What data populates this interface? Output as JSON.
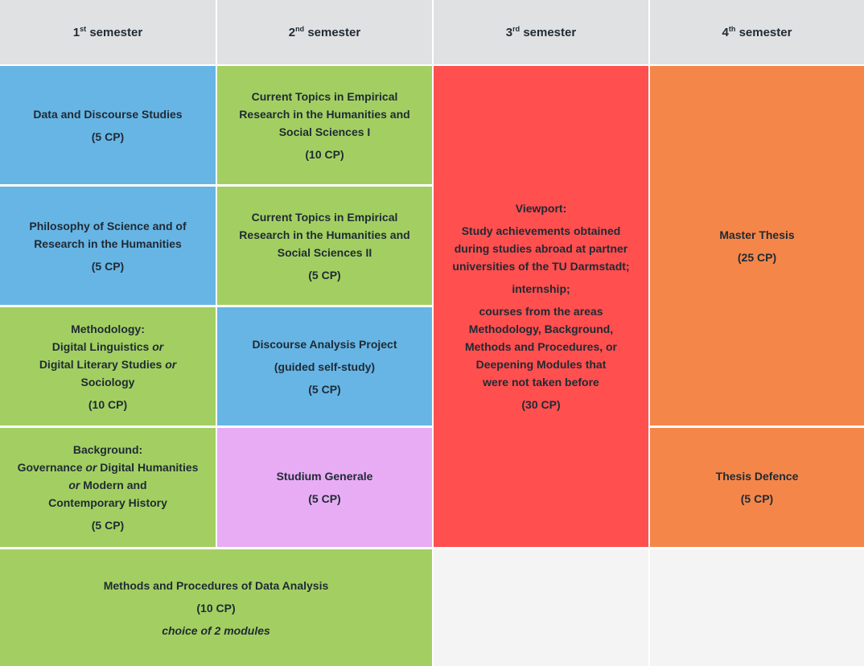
{
  "headers": [
    {
      "num": "1",
      "sup": "st",
      "label": "semester"
    },
    {
      "num": "2",
      "sup": "nd",
      "label": "semester"
    },
    {
      "num": "3",
      "sup": "rd",
      "label": "semester"
    },
    {
      "num": "4",
      "sup": "th",
      "label": "semester"
    }
  ],
  "modules": {
    "data_discourse": {
      "title": "Data and Discourse Studies",
      "cp": "(5 CP)"
    },
    "philosophy": {
      "title1": "Philosophy of Science and of",
      "title2": "Research in the Humanities",
      "cp": "(5 CP)"
    },
    "methodology": {
      "title": "Methodology:",
      "opt1": "Digital Linguistics",
      "or": "or",
      "opt2": "Digital Literary Studies",
      "opt3": "Sociology",
      "cp": "(10 CP)"
    },
    "background": {
      "title": "Background:",
      "opt1": "Governance",
      "or": "or",
      "opt2": "Digital Humanities",
      "opt3": "Modern and",
      "opt4": "Contemporary History",
      "cp": "(5 CP)"
    },
    "current_topics_1": {
      "line1": "Current Topics in Empirical",
      "line2": "Research in the Humanities and",
      "line3": "Social Sciences I",
      "cp": "(10 CP)"
    },
    "current_topics_2": {
      "line1": "Current Topics in Empirical",
      "line2": "Research in the Humanities and",
      "line3": "Social Sciences II",
      "cp": "(5 CP)"
    },
    "discourse_project": {
      "title": "Discourse Analysis Project",
      "sub": "(guided self-study)",
      "cp": "(5 CP)"
    },
    "studium_generale": {
      "title": "Studium Generale",
      "cp": "(5 CP)"
    },
    "viewport": {
      "title": "Viewport:",
      "lines_a": [
        "Study achievements obtained",
        "during studies abroad at partner",
        "universities of the TU Darmstadt;"
      ],
      "internship": "internship;",
      "lines_b": [
        "courses from the areas",
        "Methodology, Background,",
        "Methods and Procedures, or",
        "Deepening Modules that",
        "were not taken before"
      ],
      "cp": "(30 CP)"
    },
    "master_thesis": {
      "title": "Master Thesis",
      "cp": "(25 CP)"
    },
    "thesis_defence": {
      "title": "Thesis Defence",
      "cp": "(5 CP)"
    },
    "methods_procedures": {
      "title": "Methods and Procedures of Data Analysis",
      "cp": "(10 CP)",
      "note": "choice of 2 modules"
    }
  }
}
